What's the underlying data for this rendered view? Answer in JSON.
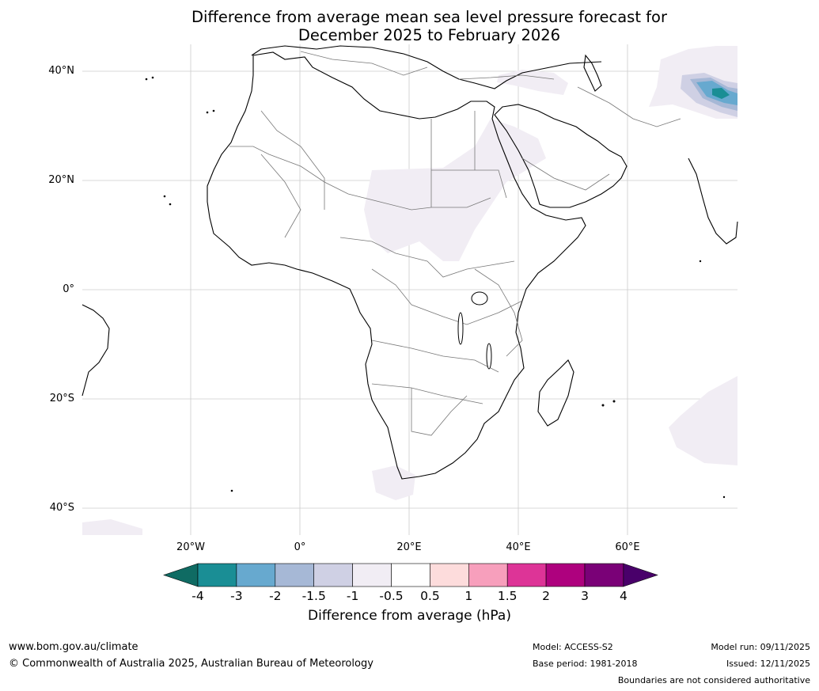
{
  "title_lines": [
    "Difference from average mean sea level pressure forecast for",
    "December 2025 to February 2026"
  ],
  "map": {
    "lat_labels": [
      "40°N",
      "20°N",
      "0°",
      "20°S",
      "40°S"
    ],
    "lon_labels": [
      "20°W",
      "0°",
      "20°E",
      "40°E",
      "60°E"
    ]
  },
  "colorbar": {
    "tick_labels": [
      "-4",
      "-3",
      "-2",
      "-1.5",
      "-1",
      "-0.5",
      "0.5",
      "1",
      "1.5",
      "2",
      "3",
      "4"
    ],
    "colors": [
      "#1a8e95",
      "#67a9cf",
      "#a6b8d6",
      "#cfd0e4",
      "#f1edf4",
      "#ffffff",
      "#fddcdc",
      "#f79fbc",
      "#dd3497",
      "#ae017e",
      "#7a0177"
    ],
    "under_color": "#0f6b63",
    "over_color": "#49006a",
    "label": "Difference from average (hPa)"
  },
  "footer": {
    "website": "www.bom.gov.au/climate",
    "copyright": "© Commonwealth of Australia 2025, Australian Bureau of Meteorology",
    "model": "Model: ACCESS-S2",
    "base_period": "Base period: 1981-2018",
    "model_run": "Model run: 09/11/2025",
    "issued": "Issued: 12/11/2025",
    "disclaimer": "Boundaries are not considered authoritative"
  }
}
